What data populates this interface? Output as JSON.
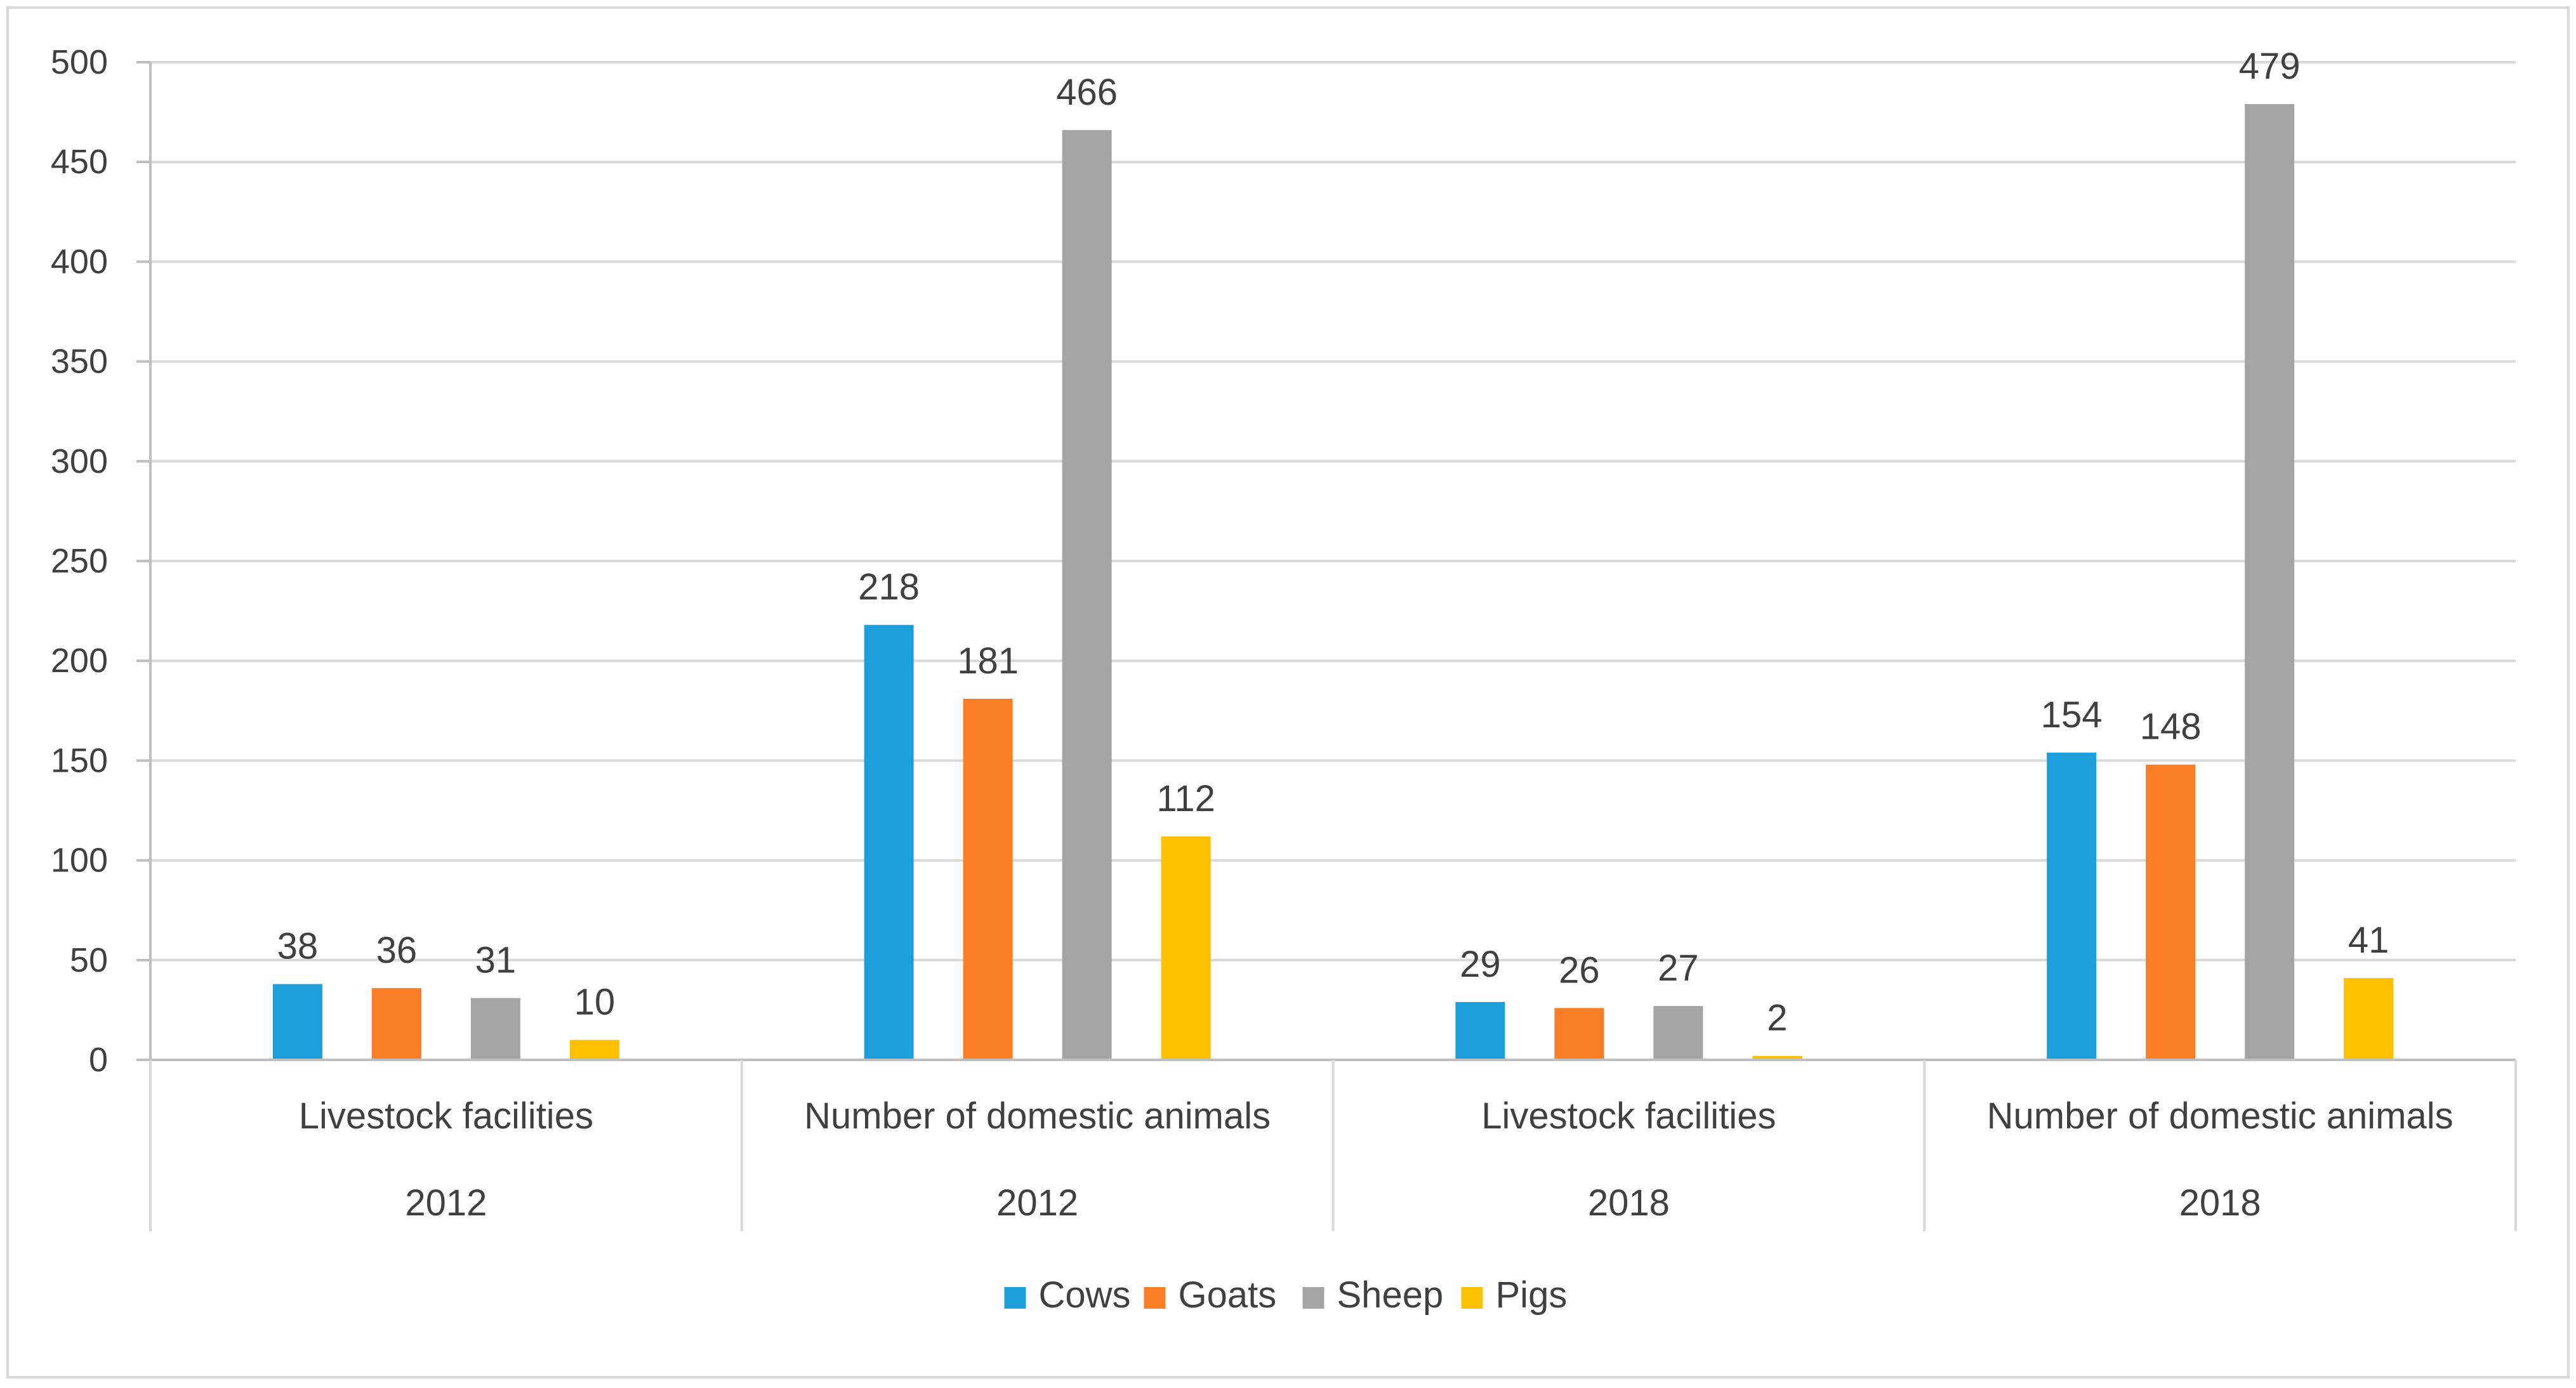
{
  "chart_data": {
    "type": "bar",
    "title": "",
    "xlabel": "",
    "ylabel": "",
    "ylim": [
      0,
      500
    ],
    "yticks": [
      0,
      50,
      100,
      150,
      200,
      250,
      300,
      350,
      400,
      450,
      500
    ],
    "grid": true,
    "legend_position": "bottom",
    "groups": [
      {
        "category": "Livestock facilities",
        "year": "2012"
      },
      {
        "category": "Number of domestic animals",
        "year": "2012"
      },
      {
        "category": "Livestock facilities",
        "year": "2018"
      },
      {
        "category": "Number of domestic animals",
        "year": "2018"
      }
    ],
    "series": [
      {
        "name": "Cows",
        "color": "#1c9fdb",
        "values": [
          38,
          218,
          29,
          154
        ]
      },
      {
        "name": "Goats",
        "color": "#f97e26",
        "values": [
          36,
          181,
          26,
          148
        ]
      },
      {
        "name": "Sheep",
        "color": "#a5a5a5",
        "values": [
          31,
          466,
          27,
          479
        ]
      },
      {
        "name": "Pigs",
        "color": "#ffc000",
        "values": [
          10,
          112,
          2,
          41
        ]
      }
    ]
  }
}
